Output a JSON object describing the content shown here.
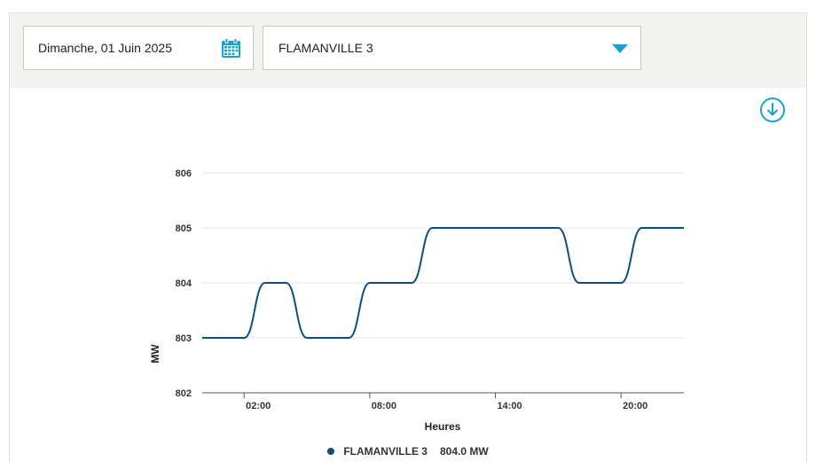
{
  "toolbar": {
    "date_label": "Dimanche, 01 Juin 2025",
    "site_label": "FLAMANVILLE 3",
    "calendar_icon": "calendar-icon",
    "dropdown_icon": "caret-down-icon",
    "accent_color": "#1a9fd6"
  },
  "download": {
    "icon": "download-icon"
  },
  "legend": {
    "series_name": "FLAMANVILLE 3",
    "current_value": "804.0 MW",
    "color": "#0b4f7e"
  },
  "chart_data": {
    "type": "line",
    "title": "",
    "xlabel": "Heures",
    "ylabel": "MW",
    "ylim": [
      802,
      806
    ],
    "yticks": [
      "802",
      "803",
      "804",
      "805",
      "806"
    ],
    "xlim": [
      0,
      23
    ],
    "xticks": [
      {
        "hour": 2,
        "label": "02:00"
      },
      {
        "hour": 8,
        "label": "08:00"
      },
      {
        "hour": 14,
        "label": "14:00"
      },
      {
        "hour": 20,
        "label": "20:00"
      }
    ],
    "grid": true,
    "legend_position": "bottom",
    "series": [
      {
        "name": "FLAMANVILLE 3",
        "color": "#0b4f7e",
        "x": [
          0,
          1,
          2,
          3,
          4,
          5,
          6,
          7,
          8,
          9,
          10,
          11,
          12,
          13,
          14,
          15,
          16,
          17,
          18,
          19,
          20,
          21,
          22,
          23
        ],
        "values": [
          803,
          803,
          803,
          804,
          804,
          803,
          803,
          803,
          804,
          804,
          804,
          805,
          805,
          805,
          805,
          805,
          805,
          805,
          804,
          804,
          804,
          805,
          805,
          805
        ]
      }
    ]
  }
}
